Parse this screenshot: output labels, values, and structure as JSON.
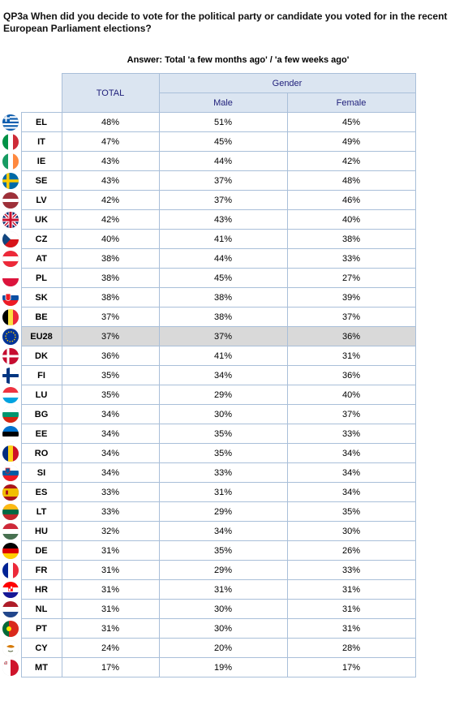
{
  "question": "QP3a When did you decide to vote for the political party or candidate you voted for in the recent European Parliament elections?",
  "answer_label": "Answer: Total 'a few months ago' / 'a few weeks ago'",
  "headers": {
    "total": "TOTAL",
    "gender": "Gender",
    "male": "Male",
    "female": "Female"
  },
  "highlight_row": "EU28",
  "flags": {
    "EL": "flag-greece-icon",
    "IT": "flag-italy-icon",
    "IE": "flag-ireland-icon",
    "SE": "flag-sweden-icon",
    "LV": "flag-latvia-icon",
    "UK": "flag-uk-icon",
    "CZ": "flag-czech-icon",
    "AT": "flag-austria-icon",
    "PL": "flag-poland-icon",
    "SK": "flag-slovakia-icon",
    "BE": "flag-belgium-icon",
    "EU28": "flag-eu-icon",
    "DK": "flag-denmark-icon",
    "FI": "flag-finland-icon",
    "LU": "flag-luxembourg-icon",
    "BG": "flag-bulgaria-icon",
    "EE": "flag-estonia-icon",
    "RO": "flag-romania-icon",
    "SI": "flag-slovenia-icon",
    "ES": "flag-spain-icon",
    "LT": "flag-lithuania-icon",
    "HU": "flag-hungary-icon",
    "DE": "flag-germany-icon",
    "FR": "flag-france-icon",
    "HR": "flag-croatia-icon",
    "NL": "flag-netherlands-icon",
    "PT": "flag-portugal-icon",
    "CY": "flag-cyprus-icon",
    "MT": "flag-malta-icon"
  },
  "chart_data": {
    "type": "table",
    "title": "QP3a When did you decide to vote for the political party or candidate you voted for in the recent European Parliament elections?",
    "subtitle": "Answer: Total 'a few months ago' / 'a few weeks ago'",
    "columns": [
      "TOTAL",
      "Male",
      "Female"
    ],
    "column_group": "Gender",
    "rows": [
      {
        "code": "EL",
        "total": "48%",
        "male": "51%",
        "female": "45%"
      },
      {
        "code": "IT",
        "total": "47%",
        "male": "45%",
        "female": "49%"
      },
      {
        "code": "IE",
        "total": "43%",
        "male": "44%",
        "female": "42%"
      },
      {
        "code": "SE",
        "total": "43%",
        "male": "37%",
        "female": "48%"
      },
      {
        "code": "LV",
        "total": "42%",
        "male": "37%",
        "female": "46%"
      },
      {
        "code": "UK",
        "total": "42%",
        "male": "43%",
        "female": "40%"
      },
      {
        "code": "CZ",
        "total": "40%",
        "male": "41%",
        "female": "38%"
      },
      {
        "code": "AT",
        "total": "38%",
        "male": "44%",
        "female": "33%"
      },
      {
        "code": "PL",
        "total": "38%",
        "male": "45%",
        "female": "27%"
      },
      {
        "code": "SK",
        "total": "38%",
        "male": "38%",
        "female": "39%"
      },
      {
        "code": "BE",
        "total": "37%",
        "male": "38%",
        "female": "37%"
      },
      {
        "code": "EU28",
        "total": "37%",
        "male": "37%",
        "female": "36%"
      },
      {
        "code": "DK",
        "total": "36%",
        "male": "41%",
        "female": "31%"
      },
      {
        "code": "FI",
        "total": "35%",
        "male": "34%",
        "female": "36%"
      },
      {
        "code": "LU",
        "total": "35%",
        "male": "29%",
        "female": "40%"
      },
      {
        "code": "BG",
        "total": "34%",
        "male": "30%",
        "female": "37%"
      },
      {
        "code": "EE",
        "total": "34%",
        "male": "35%",
        "female": "33%"
      },
      {
        "code": "RO",
        "total": "34%",
        "male": "35%",
        "female": "34%"
      },
      {
        "code": "SI",
        "total": "34%",
        "male": "33%",
        "female": "34%"
      },
      {
        "code": "ES",
        "total": "33%",
        "male": "31%",
        "female": "34%"
      },
      {
        "code": "LT",
        "total": "33%",
        "male": "29%",
        "female": "35%"
      },
      {
        "code": "HU",
        "total": "32%",
        "male": "34%",
        "female": "30%"
      },
      {
        "code": "DE",
        "total": "31%",
        "male": "35%",
        "female": "26%"
      },
      {
        "code": "FR",
        "total": "31%",
        "male": "29%",
        "female": "33%"
      },
      {
        "code": "HR",
        "total": "31%",
        "male": "31%",
        "female": "31%"
      },
      {
        "code": "NL",
        "total": "31%",
        "male": "30%",
        "female": "31%"
      },
      {
        "code": "PT",
        "total": "31%",
        "male": "30%",
        "female": "31%"
      },
      {
        "code": "CY",
        "total": "24%",
        "male": "20%",
        "female": "28%"
      },
      {
        "code": "MT",
        "total": "17%",
        "male": "19%",
        "female": "17%"
      }
    ]
  }
}
